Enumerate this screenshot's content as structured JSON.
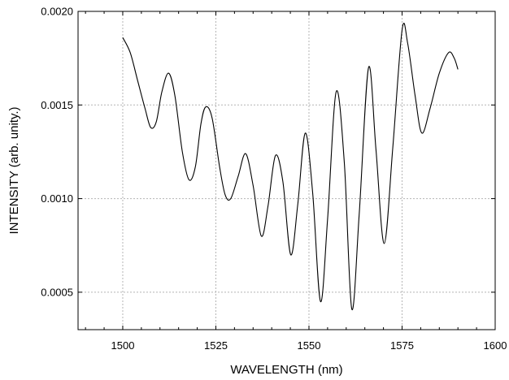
{
  "chart_data": {
    "type": "line",
    "xlabel": "WAVELENGTH (nm)",
    "ylabel": "INTENSITY (arb. unity.)",
    "xlim": [
      1488,
      1600
    ],
    "ylim": [
      0.0003,
      0.002
    ],
    "xticks": [
      1500,
      1525,
      1550,
      1575,
      1600
    ],
    "xtick_labels": [
      "1500",
      "1525",
      "1550",
      "1575",
      "1600"
    ],
    "yticks": [
      0.0005,
      0.001,
      0.0015,
      0.002
    ],
    "ytick_labels": [
      "0.0005",
      "0.0010",
      "0.0015",
      "0.0020"
    ],
    "grid": true,
    "line_color": "#000000",
    "grid_color": "#b5b5b5",
    "series": [
      {
        "x": [
          1500,
          1502,
          1504,
          1506,
          1507.5,
          1509,
          1510.5,
          1512.3,
          1514,
          1516,
          1517.8,
          1519.5,
          1521,
          1522.3,
          1524,
          1526,
          1527.5,
          1529,
          1531,
          1533,
          1535,
          1537.2,
          1539,
          1541,
          1543,
          1545.1,
          1547,
          1549,
          1551,
          1553.1,
          1555,
          1557.3,
          1559.5,
          1561.5,
          1563.5,
          1566,
          1568,
          1570.2,
          1572.5,
          1575,
          1576.5,
          1578.5,
          1580.3,
          1582.5,
          1585,
          1587.5,
          1589,
          1590
        ],
        "y": [
          0.00186,
          0.00178,
          0.00163,
          0.00148,
          0.00138,
          0.00141,
          0.00157,
          0.00167,
          0.00155,
          0.00125,
          0.0011,
          0.00117,
          0.0014,
          0.00149,
          0.00143,
          0.00117,
          0.00102,
          0.001,
          0.00112,
          0.00124,
          0.00107,
          0.0008,
          0.00096,
          0.00123,
          0.00109,
          0.0007,
          0.00097,
          0.00135,
          0.00103,
          0.00045,
          0.00089,
          0.00157,
          0.00119,
          0.00041,
          0.00092,
          0.0017,
          0.00126,
          0.00076,
          0.00127,
          0.0019,
          0.00183,
          0.00155,
          0.00135,
          0.00148,
          0.00167,
          0.00178,
          0.00175,
          0.00169
        ]
      }
    ]
  }
}
